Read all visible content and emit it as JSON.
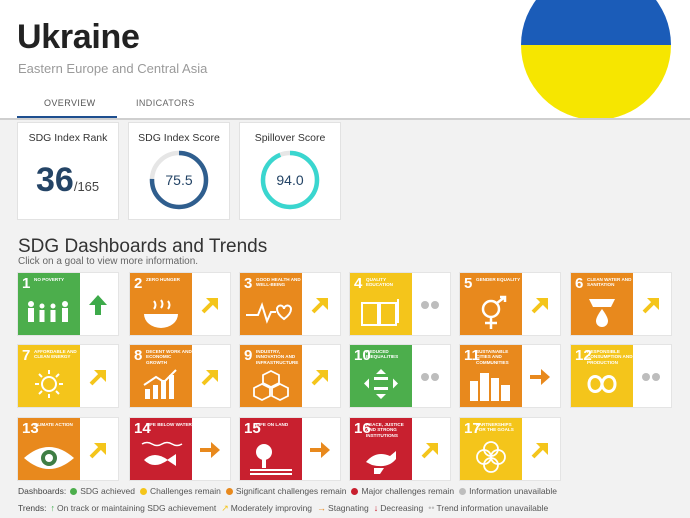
{
  "header": {
    "country": "Ukraine",
    "region": "Eastern Europe and Central Asia",
    "tabs": [
      "OVERVIEW",
      "INDICATORS"
    ],
    "flag_colors": [
      "#1b5cb8",
      "#f6e600"
    ]
  },
  "cards": {
    "rank": {
      "title": "SDG Index Rank",
      "value": "36",
      "total": "/165"
    },
    "score": {
      "title": "SDG Index Score",
      "value": "75.5",
      "fraction": 0.755,
      "color": "#2f5e8e"
    },
    "spillover": {
      "title": "Spillover Score",
      "value": "94.0",
      "fraction": 0.94,
      "color": "#3ad6cf"
    }
  },
  "section": {
    "title": "SDG Dashboards and Trends",
    "subtitle": "Click on a goal to view more information."
  },
  "goals": [
    {
      "num": "1",
      "name": "NO POVERTY",
      "color": "#e5243b",
      "icon": "family-icon",
      "status": "SDG achieved",
      "trend": "up"
    },
    {
      "num": "2",
      "name": "ZERO HUNGER",
      "color": "#dda63a",
      "icon": "bowl-icon",
      "status": "Significant challenges remain",
      "trend": "moderate"
    },
    {
      "num": "3",
      "name": "GOOD HEALTH AND WELL-BEING",
      "color": "#4c9f38",
      "icon": "heartbeat-icon",
      "status": "Significant challenges remain",
      "trend": "moderate"
    },
    {
      "num": "4",
      "name": "QUALITY EDUCATION",
      "color": "#c5192d",
      "icon": "book-icon",
      "status": "Challenges remain",
      "trend": "na"
    },
    {
      "num": "5",
      "name": "GENDER EQUALITY",
      "color": "#ff3a21",
      "icon": "gender-icon",
      "status": "Significant challenges remain",
      "trend": "moderate"
    },
    {
      "num": "6",
      "name": "CLEAN WATER AND SANITATION",
      "color": "#26bde2",
      "icon": "water-icon",
      "status": "Significant challenges remain",
      "trend": "moderate"
    },
    {
      "num": "7",
      "name": "AFFORDABLE AND CLEAN ENERGY",
      "color": "#fcc30b",
      "icon": "sun-icon",
      "status": "Challenges remain",
      "trend": "moderate"
    },
    {
      "num": "8",
      "name": "DECENT WORK AND ECONOMIC GROWTH",
      "color": "#a21942",
      "icon": "growth-chart-icon",
      "status": "Significant challenges remain",
      "trend": "moderate"
    },
    {
      "num": "9",
      "name": "INDUSTRY, INNOVATION AND INFRASTRUCTURE",
      "color": "#fd6925",
      "icon": "cubes-icon",
      "status": "Significant challenges remain",
      "trend": "moderate"
    },
    {
      "num": "10",
      "name": "REDUCED INEQUALITIES",
      "color": "#dd1367",
      "icon": "equality-icon",
      "status": "SDG achieved",
      "trend": "na"
    },
    {
      "num": "11",
      "name": "SUSTAINABLE CITIES AND COMMUNITIES",
      "color": "#fd9d24",
      "icon": "city-icon",
      "status": "Significant challenges remain",
      "trend": "stagnating"
    },
    {
      "num": "12",
      "name": "RESPONSIBLE CONSUMPTION AND PRODUCTION",
      "color": "#bf8b2e",
      "icon": "infinity-icon",
      "status": "Challenges remain",
      "trend": "na"
    },
    {
      "num": "13",
      "name": "CLIMATE ACTION",
      "color": "#3f7e44",
      "icon": "eye-globe-icon",
      "status": "Significant challenges remain",
      "trend": "moderate"
    },
    {
      "num": "14",
      "name": "LIFE BELOW WATER",
      "color": "#0a97d9",
      "icon": "fish-icon",
      "status": "Major challenges remain",
      "trend": "stagnating"
    },
    {
      "num": "15",
      "name": "LIFE ON LAND",
      "color": "#56c02b",
      "icon": "tree-icon",
      "status": "Major challenges remain",
      "trend": "stagnating"
    },
    {
      "num": "16",
      "name": "PEACE, JUSTICE AND STRONG INSTITUTIONS",
      "color": "#00689d",
      "icon": "dove-icon",
      "status": "Major challenges remain",
      "trend": "moderate"
    },
    {
      "num": "17",
      "name": "PARTNERSHIPS FOR THE GOALS",
      "color": "#19486a",
      "icon": "rings-icon",
      "status": "Challenges remain",
      "trend": "moderate"
    }
  ],
  "status_colors": {
    "SDG achieved": "#4cae4c",
    "Challenges remain": "#f4c51b",
    "Significant challenges remain": "#e8891d",
    "Major challenges remain": "#c8202f",
    "Information unavailable": "#bdbdbd"
  },
  "trend_colors": {
    "up": "#3daa4a",
    "moderate": "#f4c51b",
    "stagnating": "#e8891d",
    "decreasing": "#c8202f",
    "na": "#bdbdbd"
  },
  "legend": {
    "dashboards_label": "Dashboards:",
    "dashboards": [
      "SDG achieved",
      "Challenges remain",
      "Significant challenges remain",
      "Major challenges remain",
      "Information unavailable"
    ],
    "trends_label": "Trends:",
    "trends": [
      {
        "key": "up",
        "label": "On track or maintaining SDG achievement"
      },
      {
        "key": "moderate",
        "label": "Moderately improving"
      },
      {
        "key": "stagnating",
        "label": "Stagnating"
      },
      {
        "key": "decreasing",
        "label": "Decreasing"
      },
      {
        "key": "na",
        "label": "Trend information unavailable"
      }
    ]
  }
}
